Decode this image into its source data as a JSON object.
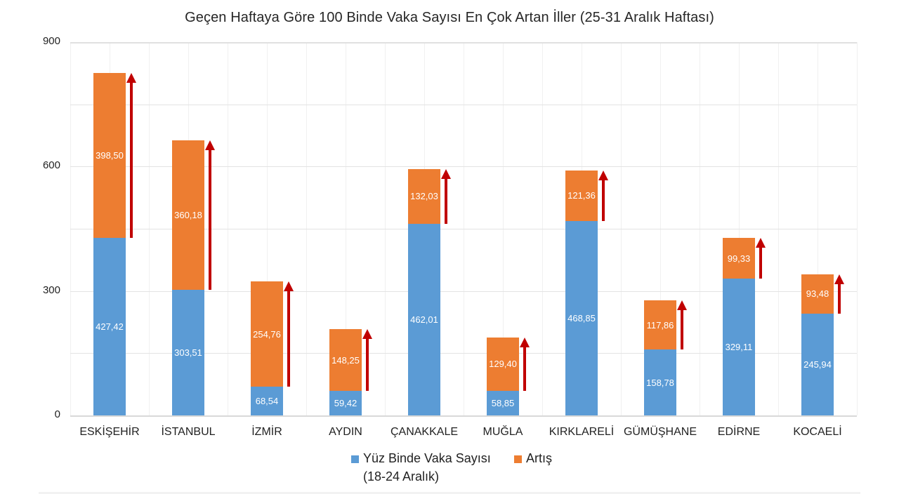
{
  "chart_data": {
    "type": "bar",
    "stacked": true,
    "title": "Geçen Haftaya Göre 100 Binde Vaka Sayısı En Çok Artan İller (25-31 Aralık Haftası)",
    "xlabel": "",
    "ylabel": "",
    "ylim": [
      0,
      900
    ],
    "yticks": [
      "0",
      "300",
      "600",
      "900"
    ],
    "grid": true,
    "legend_position": "bottom",
    "categories": [
      "ESKİŞEHİR",
      "İSTANBUL",
      "İZMİR",
      "AYDIN",
      "ÇANAKKALE",
      "MUĞLA",
      "KIRKLARELİ",
      "GÜMÜŞHANE",
      "EDİRNE",
      "KOCAELİ"
    ],
    "series": [
      {
        "name": "Yüz Binde Vaka Sayısı (18-24 Aralık)",
        "color": "#5b9bd5",
        "values": [
          427.42,
          303.51,
          68.54,
          59.42,
          462.01,
          58.85,
          468.85,
          158.78,
          329.11,
          245.94
        ],
        "labels": [
          "427,42",
          "303,51",
          "68,54",
          "59,42",
          "462,01",
          "58,85",
          "468,85",
          "158,78",
          "329,11",
          "245,94"
        ]
      },
      {
        "name": "Artış",
        "color": "#ed7d31",
        "values": [
          398.5,
          360.18,
          254.76,
          148.25,
          132.03,
          129.4,
          121.36,
          117.86,
          99.33,
          93.48
        ],
        "labels": [
          "398,50",
          "360,18",
          "254,76",
          "148,25",
          "132,03",
          "129,40",
          "121,36",
          "117,86",
          "99,33",
          "93,48"
        ]
      }
    ],
    "annotations": "Red upward arrows beside each orange (Artış) segment indicating increase",
    "arrow_color": "#c00000"
  },
  "legend": {
    "base_line1": "Yüz Binde Vaka Sayısı",
    "base_line2": "(18-24 Aralık)",
    "inc": "Artış"
  }
}
